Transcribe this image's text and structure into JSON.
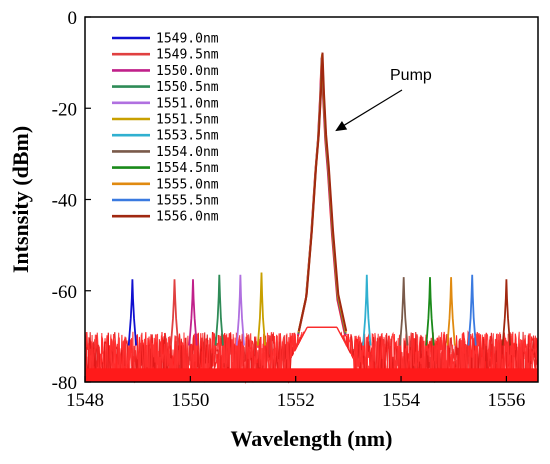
{
  "chart_data": {
    "type": "line",
    "title": "",
    "xlabel": "Wavelength (nm)",
    "ylabel": "Intsnsity (dBm)",
    "xlim": [
      1548,
      1556.6
    ],
    "ylim": [
      -80,
      0
    ],
    "xticks": [
      1548,
      1550,
      1552,
      1554,
      1556
    ],
    "yticks": [
      0,
      -20,
      -40,
      -60,
      -80
    ],
    "grid": false,
    "legend_position": "top-left",
    "annotation": {
      "text": "Pump",
      "arrow_to": [
        1552.75,
        -25
      ]
    },
    "noise_floor_dBm": -75,
    "pump": {
      "wavelength": 1552.5,
      "peak_dBm": -9
    },
    "series": [
      {
        "name": "1549.0nm",
        "color": "#1010d0",
        "peak_wavelength": 1548.9,
        "peak_dBm": -57.5
      },
      {
        "name": "1549.5nm",
        "color": "#e04040",
        "peak_wavelength": 1549.7,
        "peak_dBm": -57.5
      },
      {
        "name": "1550.0nm",
        "color": "#c0208a",
        "peak_wavelength": 1550.05,
        "peak_dBm": -57.5
      },
      {
        "name": "1550.5nm",
        "color": "#2e8b57",
        "peak_wavelength": 1550.55,
        "peak_dBm": -56.5
      },
      {
        "name": "1551.0nm",
        "color": "#b070e0",
        "peak_wavelength": 1550.95,
        "peak_dBm": -56.5
      },
      {
        "name": "1551.5nm",
        "color": "#c8a000",
        "peak_wavelength": 1551.35,
        "peak_dBm": -56
      },
      {
        "name": "1553.5nm",
        "color": "#30b0d0",
        "peak_wavelength": 1553.35,
        "peak_dBm": -56.5
      },
      {
        "name": "1554.0nm",
        "color": "#7a5a4a",
        "peak_wavelength": 1554.05,
        "peak_dBm": -57
      },
      {
        "name": "1554.5nm",
        "color": "#1a8a1a",
        "peak_wavelength": 1554.55,
        "peak_dBm": -57
      },
      {
        "name": "1555.0nm",
        "color": "#e08a10",
        "peak_wavelength": 1554.95,
        "peak_dBm": -57
      },
      {
        "name": "1555.5nm",
        "color": "#3a7ae0",
        "peak_wavelength": 1555.35,
        "peak_dBm": -56.5
      },
      {
        "name": "1556.0nm",
        "color": "#a02810",
        "peak_wavelength": 1556.0,
        "peak_dBm": -57.5
      }
    ]
  }
}
